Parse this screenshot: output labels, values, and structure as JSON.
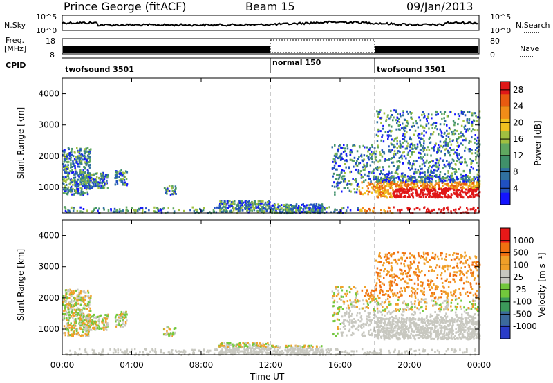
{
  "header": {
    "station": "Prince George (fitACF)",
    "beam": "Beam 15",
    "date": "09/Jan/2013"
  },
  "noise_panel": {
    "left_label": "N.Sky",
    "right_label": "N.Search",
    "left_ticks": [
      "10^5",
      "10^0"
    ],
    "right_ticks": [
      "10^5",
      "10^0"
    ]
  },
  "freq_panel": {
    "label_line1": "Freq.",
    "label_line2": "[MHz]",
    "left_ticks": [
      "18",
      "8"
    ],
    "right_ticks": [
      "80",
      "0"
    ],
    "right_label": "Nave"
  },
  "cpid": {
    "label": "CPID",
    "modes": [
      {
        "name": "twofsound 3501",
        "start_h": 0,
        "end_h": 12
      },
      {
        "name": "normal 150",
        "start_h": 12,
        "end_h": 18
      },
      {
        "name": "twofsound 3501",
        "start_h": 18,
        "end_h": 24
      }
    ]
  },
  "chart_data": [
    {
      "type": "heatmap",
      "title": "Power",
      "ylabel": "Slant Range [km]",
      "ylim": [
        180,
        4500
      ],
      "y_ticks": [
        "4000",
        "3000",
        "2000",
        "1000"
      ],
      "y_tick_values": [
        4000,
        3000,
        2000,
        1000
      ],
      "colorbar": {
        "label": "Power [dB]",
        "ticks": [
          "28",
          "24",
          "20",
          "16",
          "12",
          "8",
          "4"
        ],
        "tick_values": [
          28,
          24,
          20,
          16,
          12,
          8,
          4
        ],
        "range": [
          0,
          30
        ],
        "colors": [
          "#1414ff",
          "#2050c0",
          "#3070a0",
          "#40906a",
          "#60a860",
          "#a0c040",
          "#f0c020",
          "#f08c18",
          "#e85a10",
          "#e01818"
        ]
      }
    },
    {
      "type": "heatmap",
      "title": "Velocity",
      "ylabel": "Slant Range [km]",
      "ylim": [
        180,
        4500
      ],
      "y_ticks": [
        "4000",
        "3000",
        "2000",
        "1000"
      ],
      "y_tick_values": [
        4000,
        3000,
        2000,
        1000
      ],
      "colorbar": {
        "label": "Velocity [m s⁻¹]",
        "ticks": [
          "1000",
          "500",
          "100",
          "25",
          "-25",
          "-100",
          "-500",
          "-1000"
        ],
        "colors": [
          "#2a3cc8",
          "#3c6a9c",
          "#3c9a5a",
          "#72c83c",
          "#c8c8c0",
          "#f0a028",
          "#f07010",
          "#e81818"
        ]
      }
    }
  ],
  "time_axis": {
    "label": "Time UT",
    "ticks": [
      "00:00",
      "04:00",
      "08:00",
      "12:00",
      "16:00",
      "20:00",
      "00:00"
    ],
    "tick_hours": [
      0,
      4,
      8,
      12,
      16,
      20,
      24
    ]
  }
}
